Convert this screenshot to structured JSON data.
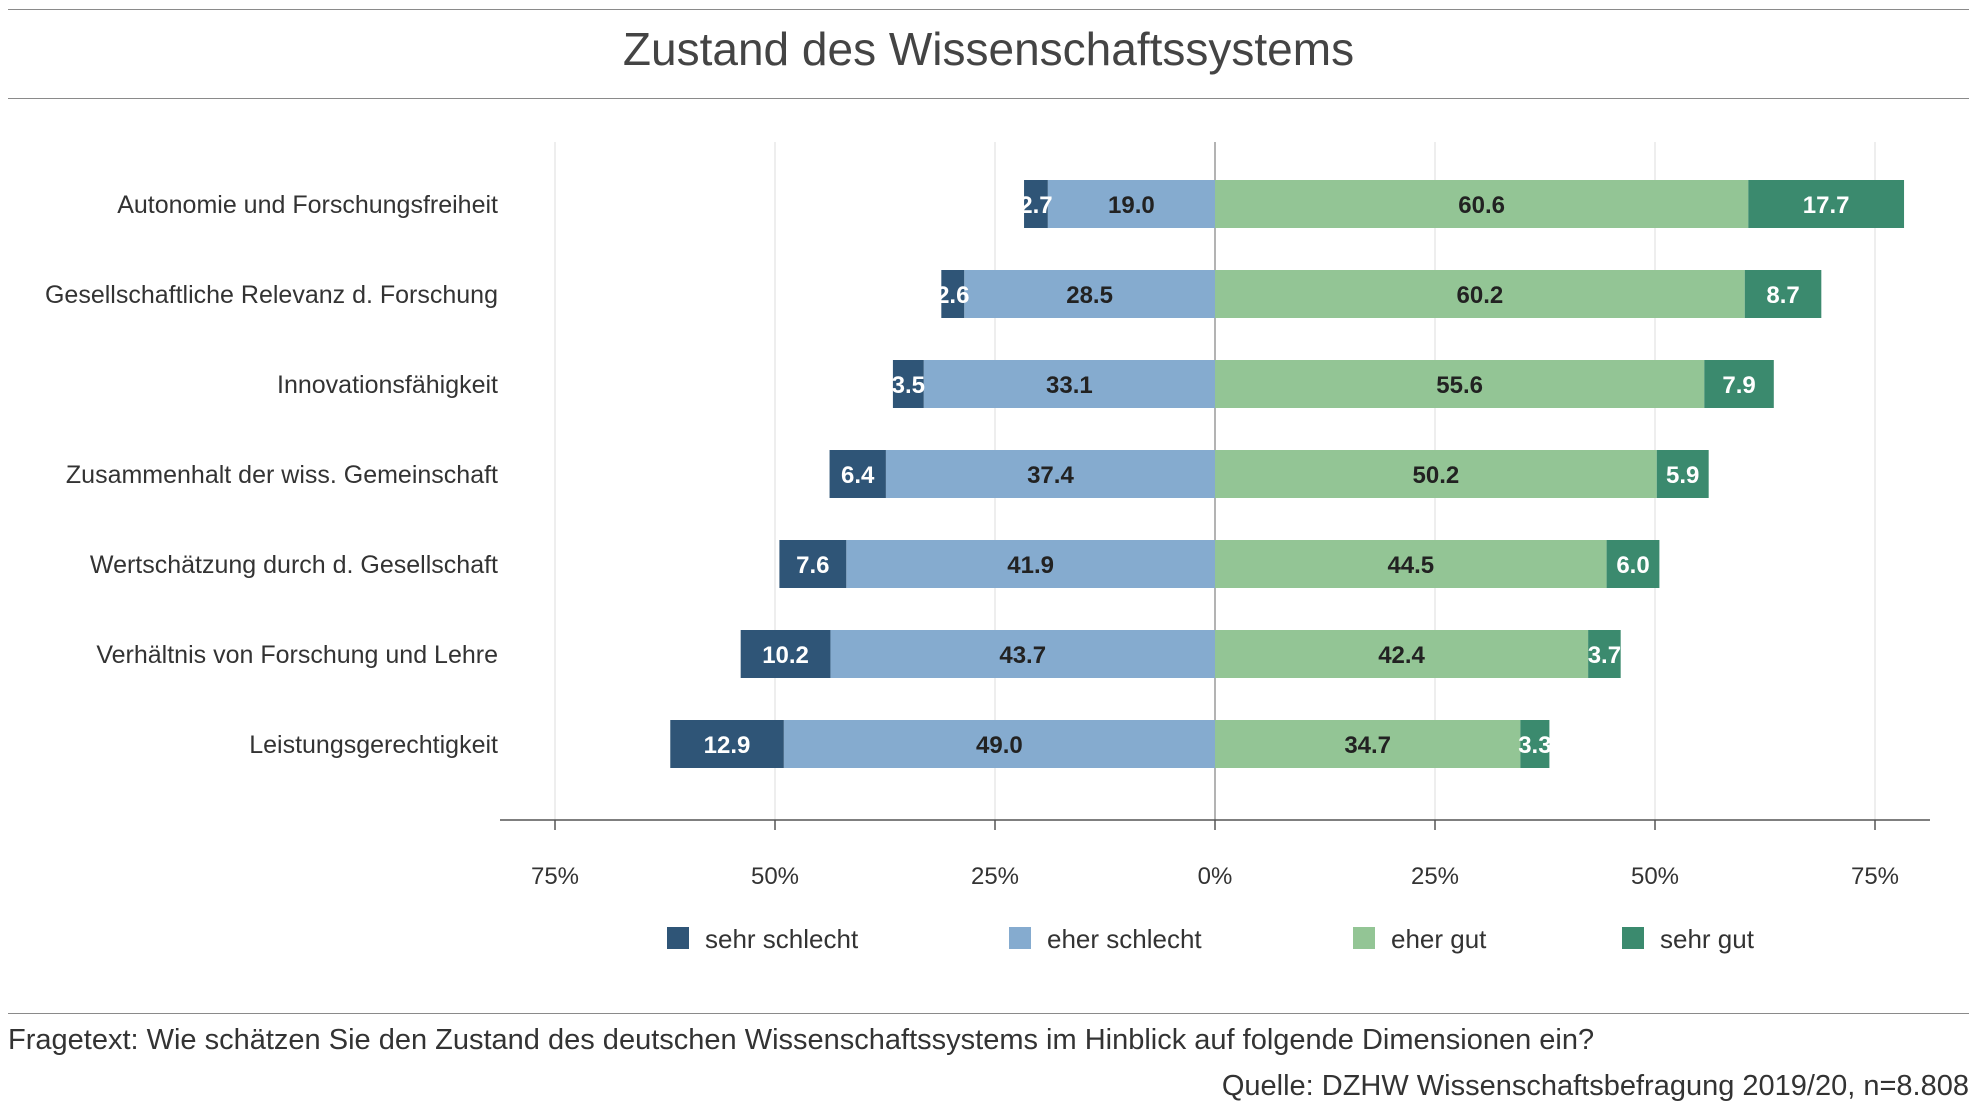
{
  "chart_data": {
    "type": "bar",
    "orientation": "horizontal-diverging-stacked",
    "title": "Zustand des Wissenschaftssystems",
    "categories": [
      "Autonomie und Forschungsfreiheit",
      "Gesellschaftliche Relevanz d. Forschung",
      "Innovationsfähigkeit",
      "Zusammenhalt der wiss. Gemeinschaft",
      "Wertschätzung durch d. Gesellschaft",
      "Verhältnis von Forschung und Lehre",
      "Leistungsgerechtigkeit"
    ],
    "series": [
      {
        "name": "sehr schlecht",
        "color": "#2f5577",
        "direction": "negative",
        "values": [
          2.7,
          2.6,
          3.5,
          6.4,
          7.6,
          10.2,
          12.9
        ],
        "label_color": "#ffffff"
      },
      {
        "name": "eher schlecht",
        "color": "#85abcf",
        "direction": "negative",
        "values": [
          19.0,
          28.5,
          33.1,
          37.4,
          41.9,
          43.7,
          49.0
        ],
        "label_color": "#222222"
      },
      {
        "name": "eher gut",
        "color": "#93c595",
        "direction": "positive",
        "values": [
          60.6,
          60.2,
          55.6,
          50.2,
          44.5,
          42.4,
          34.7
        ],
        "label_color": "#222222"
      },
      {
        "name": "sehr gut",
        "color": "#3b8a6e",
        "direction": "positive",
        "values": [
          17.7,
          8.7,
          7.9,
          5.9,
          6.0,
          3.7,
          3.3
        ],
        "label_color": "#ffffff"
      }
    ],
    "xlim": [
      -75,
      75
    ],
    "xticks": [
      -75,
      -50,
      -25,
      0,
      25,
      50,
      75
    ],
    "xtick_labels": [
      "75%",
      "50%",
      "25%",
      "0%",
      "25%",
      "50%",
      "75%"
    ],
    "grid": true,
    "legend_position": "bottom"
  },
  "footnote": "Fragetext: Wie schätzen Sie den Zustand des deutschen Wissenschaftssystems im Hinblick auf folgende Dimensionen ein?",
  "source": "Quelle: DZHW Wissenschaftsbefragung 2019/20, n=8.808"
}
